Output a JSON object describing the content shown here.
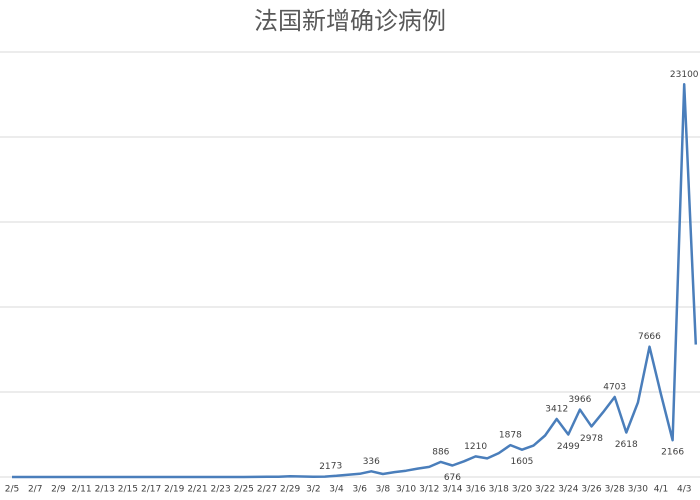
{
  "chart_data": {
    "type": "line",
    "title": "法国新增确诊病例",
    "categories": [
      "2/5",
      null,
      "2/7",
      null,
      "2/9",
      null,
      "2/11",
      null,
      "2/13",
      null,
      "2/15",
      null,
      "2/17",
      null,
      "2/19",
      null,
      "2/21",
      null,
      "2/23",
      null,
      "2/25",
      null,
      "2/27",
      null,
      "2/29",
      null,
      "3/2",
      null,
      "3/4",
      null,
      "3/6",
      null,
      "3/8",
      null,
      "3/10",
      null,
      "3/12",
      null,
      "3/14",
      null,
      "3/16",
      null,
      "3/18",
      null,
      "3/20",
      null,
      "3/22",
      null,
      "3/24",
      null,
      "3/26",
      null,
      "3/28",
      null,
      "3/30",
      null,
      "4/1",
      null,
      "4/3",
      null
    ],
    "values": [
      0,
      0,
      0,
      0,
      0,
      0,
      1,
      0,
      0,
      0,
      0,
      0,
      0,
      0,
      0,
      0,
      0,
      0,
      0,
      0,
      2,
      4,
      20,
      19,
      43,
      30,
      12,
      21,
      73,
      138,
      190,
      336,
      177,
      286,
      372,
      497,
      595,
      886,
      676,
      924,
      1210,
      1097,
      1404,
      1878,
      1605,
      1847,
      2440,
      3412,
      2499,
      3966,
      2978,
      3809,
      4703,
      2618,
      4376,
      7666,
      4861,
      2166,
      23100,
      7788
    ],
    "value_labels": [
      null,
      null,
      null,
      null,
      null,
      null,
      null,
      null,
      null,
      null,
      null,
      null,
      null,
      null,
      null,
      null,
      null,
      null,
      null,
      null,
      null,
      null,
      null,
      null,
      null,
      null,
      null,
      "21",
      "73",
      null,
      null,
      "336",
      null,
      null,
      null,
      null,
      null,
      "886",
      "676",
      null,
      "1210",
      null,
      null,
      "1878",
      "1605",
      null,
      null,
      "3412",
      "2499",
      "3966",
      "2978",
      null,
      "4703",
      "2618",
      null,
      "7666",
      null,
      "2166",
      "23100",
      null
    ],
    "color": "#4a7ebb",
    "ylim": [
      0,
      25000
    ],
    "yticks": [
      0,
      5000,
      10000,
      15000,
      20000,
      25000
    ],
    "grid": true
  }
}
